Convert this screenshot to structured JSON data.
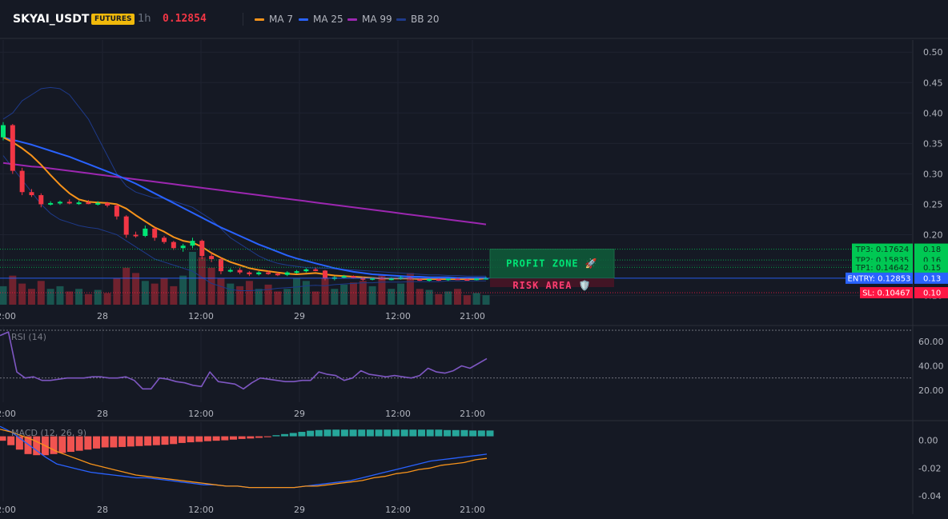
{
  "header": {
    "symbol": "SKYAI_USDT",
    "badge": "FUTURES",
    "timeframe": "1h",
    "last_price": "0.12854",
    "legend": [
      {
        "label": "MA 7",
        "color": "#f7931a"
      },
      {
        "label": "MA 25",
        "color": "#2962ff"
      },
      {
        "label": "MA 99",
        "color": "#9c27b0"
      },
      {
        "label": "BB 20",
        "color": "#1e3a8a"
      }
    ]
  },
  "colors": {
    "up": "#26a69a",
    "up_bright": "#00e676",
    "down": "#f23645",
    "ma7": "#f7931a",
    "ma25": "#2962ff",
    "ma99": "#9c27b0",
    "bb": "#1e3a8a",
    "profit": "#00c853",
    "risk": "#ff1744",
    "entry": "#2962ff",
    "rsi": "#7e57c2",
    "macd": "#2962ff",
    "signal": "#f7931a"
  },
  "chart_data": [
    {
      "type": "candlestick",
      "ylim": [
        0.085,
        0.52
      ],
      "y_ticks": [
        "0.50",
        "0.45",
        "0.40",
        "0.35",
        "0.30",
        "0.25",
        "0.20",
        "0.15",
        "0.10"
      ],
      "x_ticks": [
        "12:00",
        "28",
        "12:00",
        "29",
        "12:00",
        "21:00"
      ],
      "candles": [
        [
          0.36,
          0.385,
          0.355,
          0.38
        ],
        [
          0.38,
          0.382,
          0.3,
          0.305
        ],
        [
          0.305,
          0.31,
          0.265,
          0.27
        ],
        [
          0.27,
          0.275,
          0.262,
          0.265
        ],
        [
          0.265,
          0.268,
          0.245,
          0.25
        ],
        [
          0.25,
          0.255,
          0.248,
          0.252
        ],
        [
          0.252,
          0.256,
          0.249,
          0.254
        ],
        [
          0.254,
          0.258,
          0.25,
          0.252
        ],
        [
          0.252,
          0.256,
          0.249,
          0.253
        ],
        [
          0.253,
          0.257,
          0.25,
          0.251
        ],
        [
          0.251,
          0.255,
          0.248,
          0.252
        ],
        [
          0.252,
          0.254,
          0.245,
          0.248
        ],
        [
          0.248,
          0.25,
          0.225,
          0.23
        ],
        [
          0.23,
          0.232,
          0.195,
          0.2
        ],
        [
          0.2,
          0.205,
          0.195,
          0.198
        ],
        [
          0.198,
          0.215,
          0.196,
          0.21
        ],
        [
          0.21,
          0.212,
          0.19,
          0.195
        ],
        [
          0.195,
          0.198,
          0.185,
          0.188
        ],
        [
          0.188,
          0.19,
          0.175,
          0.178
        ],
        [
          0.178,
          0.185,
          0.172,
          0.182
        ],
        [
          0.182,
          0.195,
          0.178,
          0.19
        ],
        [
          0.19,
          0.192,
          0.16,
          0.165
        ],
        [
          0.165,
          0.17,
          0.155,
          0.16
        ],
        [
          0.16,
          0.162,
          0.135,
          0.14
        ],
        [
          0.14,
          0.145,
          0.138,
          0.142
        ],
        [
          0.142,
          0.146,
          0.135,
          0.138
        ],
        [
          0.138,
          0.14,
          0.132,
          0.135
        ],
        [
          0.135,
          0.14,
          0.133,
          0.138
        ],
        [
          0.138,
          0.141,
          0.134,
          0.136
        ],
        [
          0.136,
          0.138,
          0.132,
          0.134
        ],
        [
          0.134,
          0.14,
          0.132,
          0.138
        ],
        [
          0.138,
          0.142,
          0.136,
          0.14
        ],
        [
          0.14,
          0.145,
          0.138,
          0.143
        ],
        [
          0.143,
          0.146,
          0.14,
          0.141
        ],
        [
          0.141,
          0.142,
          0.125,
          0.128
        ],
        [
          0.128,
          0.132,
          0.125,
          0.13
        ],
        [
          0.13,
          0.134,
          0.128,
          0.132
        ],
        [
          0.132,
          0.133,
          0.128,
          0.129
        ],
        [
          0.129,
          0.131,
          0.124,
          0.126
        ],
        [
          0.126,
          0.13,
          0.125,
          0.129
        ],
        [
          0.129,
          0.131,
          0.126,
          0.127
        ],
        [
          0.127,
          0.13,
          0.125,
          0.128
        ],
        [
          0.128,
          0.132,
          0.126,
          0.13
        ],
        [
          0.13,
          0.131,
          0.126,
          0.127
        ],
        [
          0.127,
          0.129,
          0.124,
          0.125
        ],
        [
          0.125,
          0.128,
          0.123,
          0.127
        ],
        [
          0.127,
          0.129,
          0.124,
          0.126
        ],
        [
          0.126,
          0.129,
          0.124,
          0.128
        ],
        [
          0.128,
          0.13,
          0.126,
          0.127
        ],
        [
          0.127,
          0.129,
          0.125,
          0.126
        ],
        [
          0.126,
          0.13,
          0.125,
          0.128
        ],
        [
          0.128,
          0.131,
          0.126,
          0.129
        ]
      ],
      "volume": [
        0.35,
        0.55,
        0.4,
        0.3,
        0.45,
        0.3,
        0.35,
        0.25,
        0.3,
        0.2,
        0.28,
        0.22,
        0.5,
        0.7,
        0.6,
        0.45,
        0.4,
        0.5,
        0.35,
        0.55,
        1.0,
        0.9,
        0.7,
        0.5,
        0.4,
        0.35,
        0.45,
        0.3,
        0.38,
        0.25,
        0.3,
        0.5,
        0.45,
        0.25,
        0.5,
        0.3,
        0.38,
        0.42,
        0.45,
        0.35,
        0.55,
        0.3,
        0.4,
        0.6,
        0.3,
        0.28,
        0.2,
        0.25,
        0.3,
        0.18,
        0.22,
        0.18
      ],
      "ma7": [
        0.36,
        0.352,
        0.342,
        0.33,
        0.315,
        0.298,
        0.282,
        0.268,
        0.258,
        0.254,
        0.253,
        0.252,
        0.25,
        0.243,
        0.232,
        0.222,
        0.212,
        0.205,
        0.196,
        0.19,
        0.187,
        0.18,
        0.17,
        0.162,
        0.155,
        0.15,
        0.145,
        0.142,
        0.14,
        0.138,
        0.136,
        0.135,
        0.136,
        0.137,
        0.135,
        0.133,
        0.132,
        0.131,
        0.13,
        0.129,
        0.128,
        0.128,
        0.128,
        0.128,
        0.127,
        0.127,
        0.127,
        0.127,
        0.127,
        0.127,
        0.127,
        0.128
      ],
      "ma25": [
        0.36,
        0.356,
        0.352,
        0.348,
        0.343,
        0.338,
        0.333,
        0.328,
        0.322,
        0.316,
        0.31,
        0.304,
        0.298,
        0.291,
        0.284,
        0.276,
        0.268,
        0.26,
        0.252,
        0.244,
        0.236,
        0.228,
        0.22,
        0.212,
        0.205,
        0.198,
        0.191,
        0.184,
        0.178,
        0.172,
        0.166,
        0.161,
        0.157,
        0.153,
        0.149,
        0.145,
        0.142,
        0.139,
        0.137,
        0.135,
        0.134,
        0.133,
        0.132,
        0.131,
        0.131,
        0.13,
        0.13,
        0.13,
        0.129,
        0.129,
        0.129,
        0.129
      ],
      "ma99": [
        0.318,
        0.316,
        0.314,
        0.312,
        0.311,
        0.309,
        0.307,
        0.305,
        0.303,
        0.301,
        0.299,
        0.297,
        0.295,
        0.293,
        0.291,
        0.289,
        0.287,
        0.285,
        0.283,
        0.281,
        0.279,
        0.277,
        0.275,
        0.273,
        0.271,
        0.269,
        0.267,
        0.265,
        0.263,
        0.261,
        0.259,
        0.257,
        0.255,
        0.253,
        0.251,
        0.249,
        0.247,
        0.245,
        0.243,
        0.241,
        0.239,
        0.237,
        0.235,
        0.233,
        0.231,
        0.229,
        0.227,
        0.225,
        0.223,
        0.221,
        0.219,
        0.217
      ],
      "bb_upper": [
        0.39,
        0.4,
        0.42,
        0.43,
        0.44,
        0.442,
        0.44,
        0.43,
        0.41,
        0.39,
        0.36,
        0.33,
        0.3,
        0.28,
        0.27,
        0.265,
        0.26,
        0.26,
        0.255,
        0.25,
        0.245,
        0.235,
        0.225,
        0.21,
        0.195,
        0.185,
        0.175,
        0.165,
        0.158,
        0.153,
        0.15,
        0.148,
        0.146,
        0.145,
        0.145,
        0.144,
        0.143,
        0.142,
        0.141,
        0.14,
        0.139,
        0.138,
        0.137,
        0.136,
        0.135,
        0.134,
        0.134,
        0.133,
        0.133,
        0.132,
        0.132,
        0.132
      ],
      "bb_lower": [
        0.33,
        0.31,
        0.29,
        0.27,
        0.25,
        0.235,
        0.225,
        0.22,
        0.215,
        0.212,
        0.21,
        0.205,
        0.2,
        0.19,
        0.18,
        0.17,
        0.16,
        0.155,
        0.15,
        0.145,
        0.14,
        0.13,
        0.12,
        0.115,
        0.11,
        0.108,
        0.108,
        0.109,
        0.11,
        0.112,
        0.113,
        0.114,
        0.116,
        0.117,
        0.116,
        0.118,
        0.119,
        0.12,
        0.121,
        0.121,
        0.122,
        0.122,
        0.122,
        0.123,
        0.123,
        0.123,
        0.123,
        0.124,
        0.124,
        0.124,
        0.124,
        0.124
      ],
      "levels": [
        {
          "label": "TP3: 0.17624",
          "axis": "0.18",
          "value": 0.17624,
          "kind": "tp"
        },
        {
          "label": "TP2: 0.15835",
          "axis": "0.16",
          "value": 0.15835,
          "kind": "tp"
        },
        {
          "label": "TP1: 0.14642",
          "axis": "0.15",
          "value": 0.14642,
          "kind": "tp"
        },
        {
          "label": "ENTRY: 0.12853",
          "axis": "0.13",
          "value": 0.12853,
          "kind": "entry"
        },
        {
          "label": "SL: 0.10467",
          "axis": "0.10",
          "value": 0.10467,
          "kind": "sl"
        }
      ],
      "profit_zone_label": "PROFIT ZONE 🚀",
      "risk_zone_label": "RISK AREA 🛡️"
    },
    {
      "type": "line",
      "title": "RSI (14)",
      "ylim": [
        10,
        72
      ],
      "y_ticks": [
        "60.00",
        "40.00",
        "20.00"
      ],
      "x_ticks": [
        "12:00",
        "28",
        "12:00",
        "29",
        "12:00",
        "21:00"
      ],
      "overbought": 70,
      "oversold": 30,
      "values": [
        65,
        68,
        35,
        30,
        31,
        28,
        28,
        29,
        30,
        30,
        30,
        31,
        31,
        30,
        30,
        31,
        28,
        21,
        21,
        30,
        29,
        27,
        26,
        24,
        23,
        35,
        27,
        26,
        25,
        21,
        26,
        30,
        29,
        28,
        27,
        27,
        28,
        28,
        35,
        33,
        32,
        28,
        30,
        36,
        33,
        32,
        31,
        32,
        31,
        30,
        32,
        38,
        35,
        34,
        36,
        40,
        38,
        42,
        46
      ]
    },
    {
      "type": "bar+line",
      "title": "MACD (12, 26, 9)",
      "ylim": [
        -0.044,
        0.013
      ],
      "y_ticks": [
        "0.00",
        "-0.02",
        "-0.04"
      ],
      "x_ticks": [
        "12:00",
        "28",
        "12:00",
        "29",
        "12:00",
        "21:00"
      ],
      "histogram": [
        -0.002,
        -0.004,
        -0.006,
        -0.008,
        -0.0085,
        -0.0085,
        -0.008,
        -0.0075,
        -0.007,
        -0.0065,
        -0.006,
        -0.0055,
        -0.005,
        -0.005,
        -0.0048,
        -0.0046,
        -0.0044,
        -0.0042,
        -0.004,
        -0.0038,
        -0.0035,
        -0.003,
        -0.0027,
        -0.0025,
        -0.0022,
        -0.002,
        -0.0018,
        -0.0015,
        -0.0012,
        -0.001,
        -0.0007,
        -0.0004,
        0.0005,
        0.001,
        0.0015,
        0.002,
        0.0025,
        0.0028,
        0.003,
        0.003,
        0.003,
        0.003,
        0.003,
        0.003,
        0.003,
        0.003,
        0.003,
        0.003,
        0.003,
        0.003,
        0.003,
        0.003,
        0.0028,
        0.0028,
        0.0028,
        0.0026,
        0.0026,
        0.0026
      ],
      "macd": [
        0.01,
        0.006,
        0.0,
        -0.006,
        -0.012,
        -0.017,
        -0.019,
        -0.021,
        -0.023,
        -0.024,
        -0.025,
        -0.026,
        -0.027,
        -0.027,
        -0.028,
        -0.029,
        -0.03,
        -0.031,
        -0.032,
        -0.032,
        -0.033,
        -0.033,
        -0.034,
        -0.034,
        -0.034,
        -0.034,
        -0.034,
        -0.033,
        -0.032,
        -0.031,
        -0.03,
        -0.029,
        -0.027,
        -0.025,
        -0.023,
        -0.021,
        -0.019,
        -0.017,
        -0.015,
        -0.014,
        -0.013,
        -0.012,
        -0.011,
        -0.01
      ],
      "signal": [
        0.008,
        0.006,
        0.003,
        0.0,
        -0.004,
        -0.008,
        -0.011,
        -0.014,
        -0.017,
        -0.019,
        -0.021,
        -0.023,
        -0.025,
        -0.026,
        -0.027,
        -0.028,
        -0.029,
        -0.03,
        -0.031,
        -0.032,
        -0.033,
        -0.033,
        -0.034,
        -0.034,
        -0.034,
        -0.034,
        -0.034,
        -0.033,
        -0.033,
        -0.032,
        -0.031,
        -0.03,
        -0.029,
        -0.027,
        -0.026,
        -0.024,
        -0.023,
        -0.021,
        -0.02,
        -0.018,
        -0.017,
        -0.016,
        -0.014,
        -0.013
      ]
    }
  ]
}
